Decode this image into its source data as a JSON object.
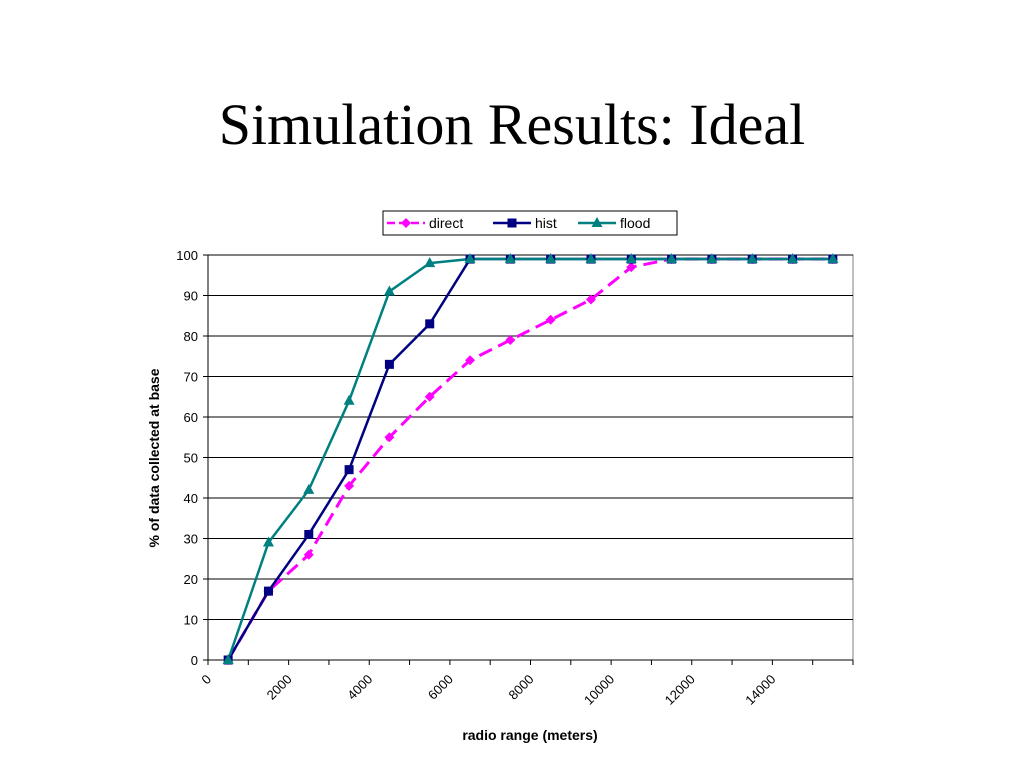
{
  "slide": {
    "title": "Simulation Results: Ideal"
  },
  "chart_data": {
    "type": "line",
    "title": "",
    "xlabel": "radio range (meters)",
    "ylabel": "% of data collected at base",
    "xlim": [
      0,
      15000
    ],
    "ylim": [
      0,
      100
    ],
    "x_ticks": [
      0,
      2000,
      4000,
      6000,
      8000,
      10000,
      12000,
      14000
    ],
    "y_ticks": [
      0,
      10,
      20,
      30,
      40,
      50,
      60,
      70,
      80,
      90,
      100
    ],
    "grid": "horizontal",
    "legend_position": "top",
    "x": [
      500,
      1500,
      2500,
      3500,
      4500,
      5500,
      6500,
      7500,
      8500,
      9500,
      10500,
      11500,
      12500,
      13500,
      14500,
      15500
    ],
    "series": [
      {
        "name": "direct",
        "color": "#ff00ff",
        "marker": "diamond",
        "dashed": true,
        "values": [
          0,
          17,
          26,
          43,
          55,
          65,
          74,
          79,
          84,
          89,
          97,
          99,
          99,
          99,
          99,
          99
        ]
      },
      {
        "name": "hist",
        "color": "#000080",
        "marker": "square",
        "dashed": false,
        "values": [
          0,
          17,
          31,
          47,
          73,
          83,
          99,
          99,
          99,
          99,
          99,
          99,
          99,
          99,
          99,
          99
        ]
      },
      {
        "name": "flood",
        "color": "#008080",
        "marker": "triangle",
        "dashed": false,
        "values": [
          0,
          29,
          42,
          64,
          91,
          98,
          99,
          99,
          99,
          99,
          99,
          99,
          99,
          99,
          99,
          99
        ]
      }
    ]
  }
}
